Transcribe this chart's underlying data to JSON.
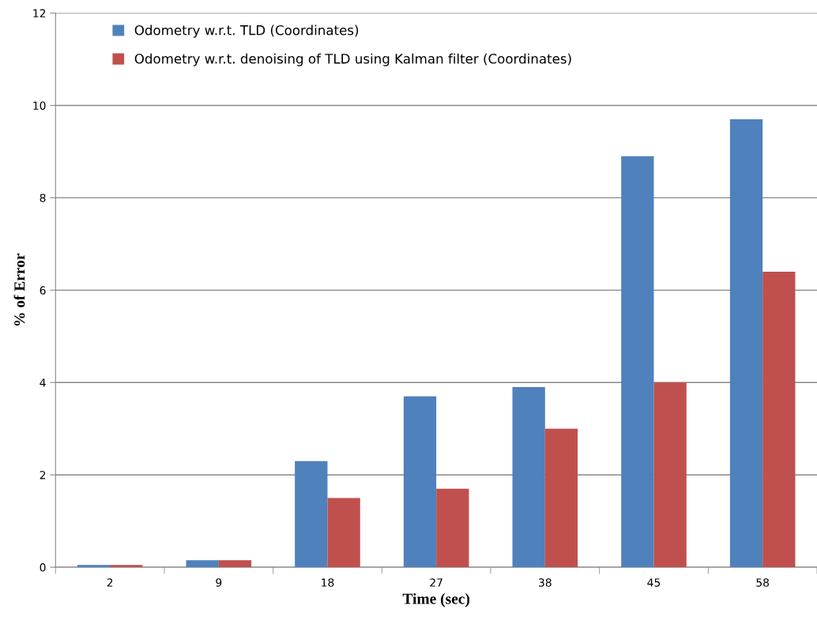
{
  "chart_data": {
    "type": "bar",
    "xlabel": "Time (sec)",
    "ylabel": "% of Error",
    "categories": [
      "2",
      "9",
      "18",
      "27",
      "38",
      "45",
      "58"
    ],
    "series": [
      {
        "name": "Odometry w.r.t. TLD (Coordinates)",
        "color": "#4f81bd",
        "values": [
          0.05,
          0.15,
          2.3,
          3.7,
          3.9,
          8.9,
          9.7
        ]
      },
      {
        "name": "Odometry w.r.t. denoising of TLD using Kalman filter (Coordinates)",
        "color": "#c0504d",
        "values": [
          0.05,
          0.15,
          1.5,
          1.7,
          3.0,
          4.0,
          6.4
        ]
      }
    ],
    "ylim": [
      0,
      12
    ],
    "yticks": [
      0,
      2,
      4,
      6,
      8,
      10,
      12
    ],
    "grid": "y",
    "legend": "top left"
  }
}
